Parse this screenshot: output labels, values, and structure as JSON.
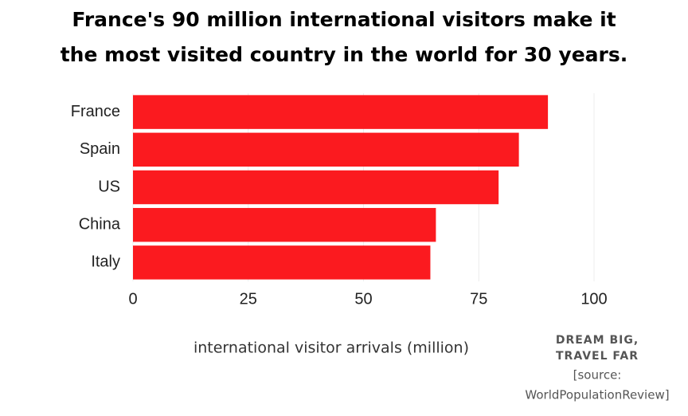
{
  "chart_data": {
    "type": "bar",
    "orientation": "horizontal",
    "title_lines": [
      "France's 90 million international visitors make it",
      "the most visited country in the world for 30 years."
    ],
    "categories": [
      "France",
      "Spain",
      "US",
      "China",
      "Italy"
    ],
    "values": [
      90,
      83.7,
      79.3,
      65.7,
      64.5
    ],
    "color": "#fb1a1f",
    "xlabel": "international visitor arrivals (million)",
    "xlim": [
      0,
      100
    ],
    "xticks": [
      0,
      25,
      50,
      75,
      100
    ],
    "grid": true,
    "annotations": [
      "DREAM BIG,",
      "TRAVEL FAR",
      "[source:",
      "WorldPopulationReview]"
    ]
  }
}
